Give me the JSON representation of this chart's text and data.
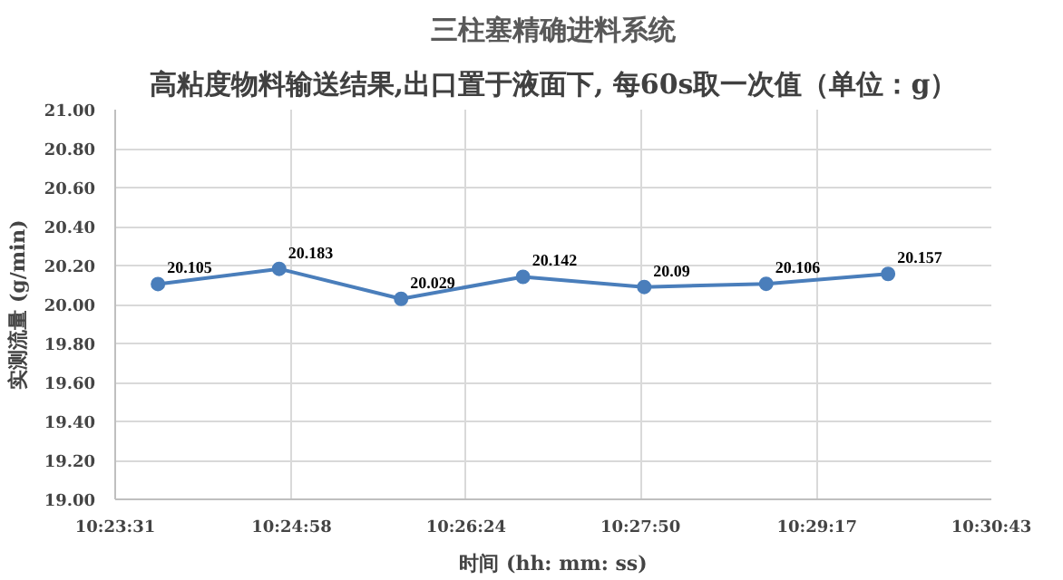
{
  "chart_data": {
    "type": "line",
    "title": "三柱塞精确进料系统",
    "subtitle": "高粘度物料输送结果,出口置于液面下, 每60s取一次值（单位：g）",
    "xlabel": "时间 (hh: mm: ss)",
    "ylabel": "实测流量 (g/min)",
    "x": [
      10.3978,
      10.4144,
      10.4311,
      10.4478,
      10.4644,
      10.4811,
      10.4978
    ],
    "series": [
      {
        "color": "#4a7ebb",
        "values": [
          20.105,
          20.183,
          20.029,
          20.142,
          20.09,
          20.106,
          20.157
        ]
      }
    ],
    "data_labels": true,
    "marker": "circle",
    "line_style": "solid",
    "grid": true,
    "xlim": [
      10.391944,
      10.511944
    ],
    "xticks": [
      {
        "value": 10.391944,
        "label": "10:23:31"
      },
      {
        "value": 10.416111,
        "label": "10:24:58"
      },
      {
        "value": 10.44,
        "label": "10:26:24"
      },
      {
        "value": 10.463889,
        "label": "10:27:50"
      },
      {
        "value": 10.488056,
        "label": "10:29:17"
      },
      {
        "value": 10.511944,
        "label": "10:30:43"
      }
    ],
    "ylim": [
      19.0,
      21.0
    ],
    "yticks": [
      {
        "value": 19.0,
        "label": "19.00"
      },
      {
        "value": 19.2,
        "label": "19.20"
      },
      {
        "value": 19.4,
        "label": "19.40"
      },
      {
        "value": 19.6,
        "label": "19.60"
      },
      {
        "value": 19.8,
        "label": "19.80"
      },
      {
        "value": 20.0,
        "label": "20.00"
      },
      {
        "value": 20.2,
        "label": "20.20"
      },
      {
        "value": 20.4,
        "label": "20.40"
      },
      {
        "value": 20.6,
        "label": "20.60"
      },
      {
        "value": 20.8,
        "label": "20.80"
      },
      {
        "value": 21.0,
        "label": "21.00"
      }
    ]
  }
}
